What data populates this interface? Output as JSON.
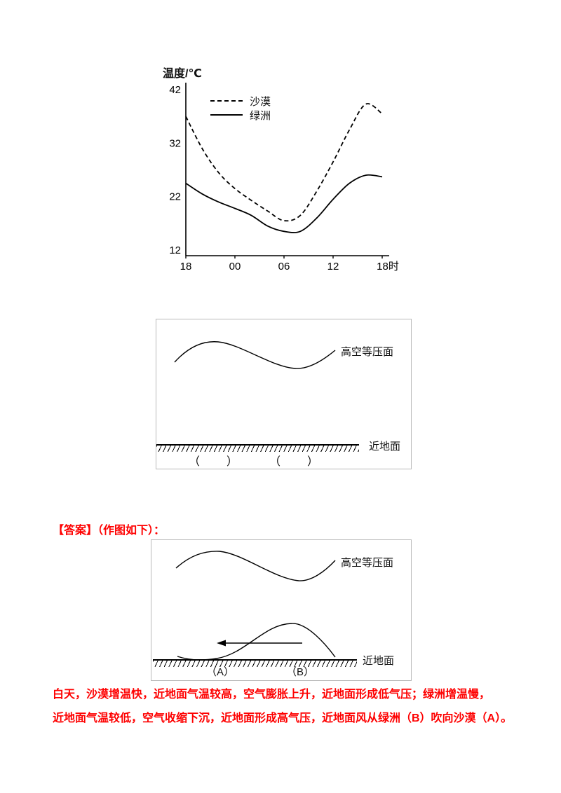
{
  "chart_data": {
    "type": "line",
    "title": "温度/℃",
    "xlabel": "",
    "ylabel": "温度/℃",
    "x_ticks": [
      "18",
      "00",
      "06",
      "12",
      "18时"
    ],
    "x_tick_hours_from_start": [
      0,
      6,
      12,
      18,
      24
    ],
    "y_ticks": [
      42,
      32,
      22,
      12
    ],
    "ylim": [
      12,
      42
    ],
    "grid": false,
    "legend_position": "top-inside",
    "sample_hours_from_18": [
      0,
      2,
      4,
      6,
      8,
      10,
      12,
      14,
      16,
      18,
      20,
      22,
      24
    ],
    "series": [
      {
        "name": "沙漠",
        "style": "dashed",
        "values": [
          37,
          31,
          26.5,
          23.5,
          21.3,
          19.3,
          17.5,
          18.5,
          23,
          28.5,
          34.5,
          39.3,
          37.5
        ]
      },
      {
        "name": "绿洲",
        "style": "solid",
        "values": [
          24.5,
          22.5,
          21,
          19.8,
          18.5,
          16.5,
          15.5,
          15.5,
          18,
          21.5,
          24.5,
          26,
          25.7
        ]
      }
    ]
  },
  "diagram_question": {
    "upper_label": "高空等压面",
    "ground_label": "近地面",
    "blank_left": "（　　）",
    "blank_right": "（　　）"
  },
  "answers": {
    "heading": "【答案】（作图如下）：",
    "line1": "白天，沙漠增温快，近地面气温较高，空气膨胀上升，近地面形成低气压；绿洲增温慢，",
    "line2": "近地面气温较低，空气收缩下沉，近地面形成高气压，近地面风从绿洲（B）吹向沙漠（A）。"
  },
  "diagram_answer": {
    "upper_label": "高空等压面",
    "ground_label": "近地面",
    "label_a": "（A）",
    "label_b": "（B）",
    "wind_arrow_direction": "left"
  },
  "colors": {
    "answer_red": "#fe0000",
    "ink": "#000000",
    "box_border": "#b9b9b9"
  }
}
